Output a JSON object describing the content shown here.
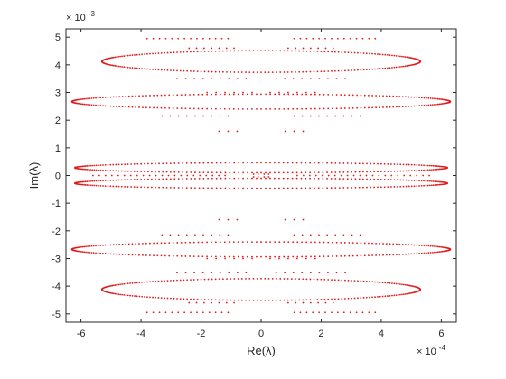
{
  "chart_data": {
    "type": "scatter",
    "title": "",
    "xlabel": "Re(λ)",
    "ylabel": "Im(λ)",
    "x_exponent": "× 10^-4",
    "y_exponent": "× 10^-3",
    "x_exponent_base": "× 10",
    "x_exponent_power": "-4",
    "y_exponent_base": "× 10",
    "y_exponent_power": "-3",
    "xlim": [
      -6.5,
      6.5
    ],
    "ylim": [
      -5.3,
      5.3
    ],
    "xticks": [
      -6,
      -4,
      -2,
      0,
      2,
      4,
      6
    ],
    "yticks": [
      -5,
      -4,
      -3,
      -2,
      -1,
      0,
      1,
      2,
      3,
      4,
      5
    ],
    "grid": false,
    "box": true,
    "marker_color": "#e31a1c",
    "series": [
      {
        "ellipses": [
          {
            "cx": 0,
            "cy": 2.67,
            "rx": 6.3,
            "ry": 0.27
          },
          {
            "cx": 0,
            "cy": -2.67,
            "rx": 6.3,
            "ry": 0.27
          },
          {
            "cx": 0,
            "cy": 4.12,
            "rx": 5.3,
            "ry": 0.39
          },
          {
            "cx": 0,
            "cy": -4.12,
            "rx": 5.3,
            "ry": 0.39
          },
          {
            "cx": 0,
            "cy": 0.28,
            "rx": 6.2,
            "ry": 0.18
          },
          {
            "cx": 0,
            "cy": -0.28,
            "rx": 6.2,
            "ry": 0.18
          }
        ],
        "point_rows": [
          {
            "y": 4.95,
            "x_from": 1.1,
            "x_to": 3.8,
            "n": 14,
            "mirror": true
          },
          {
            "y": -4.95,
            "x_from": 1.1,
            "x_to": 3.8,
            "n": 14,
            "mirror": true
          },
          {
            "y": 4.6,
            "x_from": 0.9,
            "x_to": 2.4,
            "n": 7,
            "mirror": true
          },
          {
            "y": -4.6,
            "x_from": 0.9,
            "x_to": 2.4,
            "n": 7,
            "mirror": true
          },
          {
            "y": 3.5,
            "x_from": 0.5,
            "x_to": 2.8,
            "n": 9,
            "mirror": true
          },
          {
            "y": -3.5,
            "x_from": 0.5,
            "x_to": 2.8,
            "n": 9,
            "mirror": true
          },
          {
            "y": 3.0,
            "x_from": 0.3,
            "x_to": 1.8,
            "n": 6,
            "mirror": true
          },
          {
            "y": -3.0,
            "x_from": 0.3,
            "x_to": 1.8,
            "n": 6,
            "mirror": true
          },
          {
            "y": 2.15,
            "x_from": 1.1,
            "x_to": 3.3,
            "n": 9,
            "mirror": true
          },
          {
            "y": -2.15,
            "x_from": 1.1,
            "x_to": 3.3,
            "n": 9,
            "mirror": true
          },
          {
            "y": 1.6,
            "x_from": 0.8,
            "x_to": 1.4,
            "n": 3,
            "mirror": true
          },
          {
            "y": -1.6,
            "x_from": 0.8,
            "x_to": 1.4,
            "n": 3,
            "mirror": true
          },
          {
            "y": 0.0,
            "x_from": 1.2,
            "x_to": 5.6,
            "n": 22,
            "mirror": true
          },
          {
            "y": 0.05,
            "x_from": 0.1,
            "x_to": 0.25,
            "n": 2,
            "mirror": true
          },
          {
            "y": -0.05,
            "x_from": 0.1,
            "x_to": 0.25,
            "n": 2,
            "mirror": true
          }
        ]
      }
    ]
  }
}
